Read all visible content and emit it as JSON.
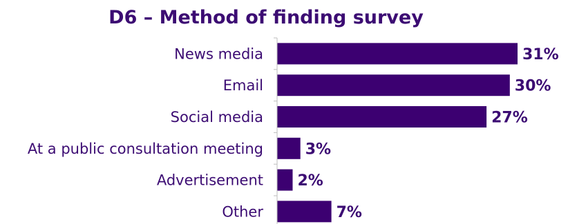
{
  "chart_data": {
    "type": "bar",
    "orientation": "horizontal",
    "title": "D6 – Method of finding survey",
    "categories": [
      "News media",
      "Email",
      "Social media",
      "At a public consultation meeting",
      "Advertisement",
      "Other"
    ],
    "values": [
      31,
      30,
      27,
      3,
      2,
      7
    ],
    "value_labels": [
      "31%",
      "30%",
      "27%",
      "3%",
      "2%",
      "7%"
    ],
    "unit": "%",
    "xlabel": "",
    "ylabel": "",
    "xlim": [
      0,
      31
    ],
    "grid": false,
    "legend": "none",
    "bar_color": "#3c0071",
    "text_color": "#3c0c73"
  }
}
